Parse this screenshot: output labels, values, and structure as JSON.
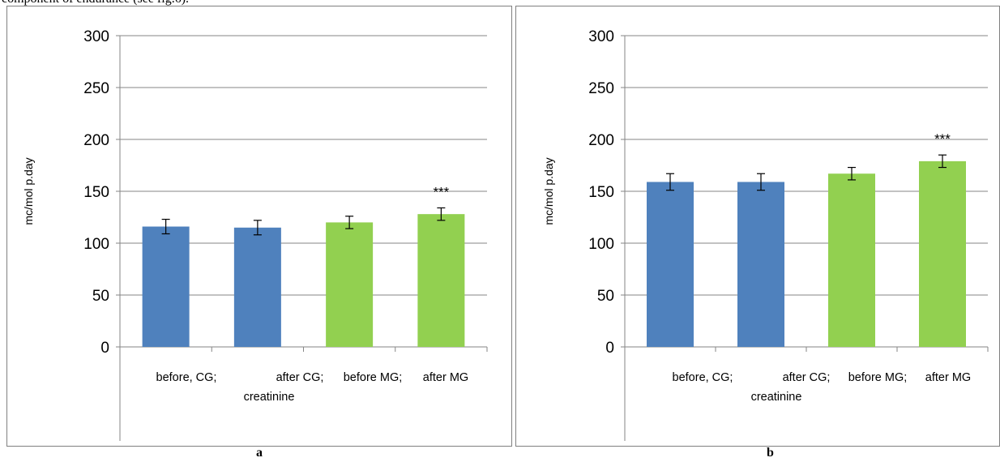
{
  "page_text": {
    "intro_fragment": "component of endurance (see fig.6)."
  },
  "chart_data": [
    {
      "type": "bar",
      "panel_label": "a",
      "categories": [
        "before, CG;",
        "after CG;",
        "before MG;",
        "after MG"
      ],
      "values": [
        116,
        115,
        120,
        128
      ],
      "errors": [
        7,
        7,
        6,
        6
      ],
      "colors": [
        "#4F81BD",
        "#4F81BD",
        "#92D050",
        "#92D050"
      ],
      "annotations": [
        "",
        "",
        "",
        "***"
      ],
      "ylim": [
        0,
        300
      ],
      "yticks": [
        0,
        50,
        100,
        150,
        200,
        250,
        300
      ],
      "ylabel": "mc/mol p.day",
      "xlabel": "creatinine",
      "grid": true
    },
    {
      "type": "bar",
      "panel_label": "b",
      "categories": [
        "before, CG;",
        "after CG;",
        "before MG;",
        "after MG"
      ],
      "values": [
        159,
        159,
        167,
        179
      ],
      "errors": [
        8,
        8,
        6,
        6
      ],
      "colors": [
        "#4F81BD",
        "#4F81BD",
        "#92D050",
        "#92D050"
      ],
      "annotations": [
        "",
        "",
        "",
        "***"
      ],
      "ylim": [
        0,
        300
      ],
      "yticks": [
        0,
        50,
        100,
        150,
        200,
        250,
        300
      ],
      "ylabel": "mc/mol p.day",
      "xlabel": "creatinine",
      "grid": true
    }
  ]
}
